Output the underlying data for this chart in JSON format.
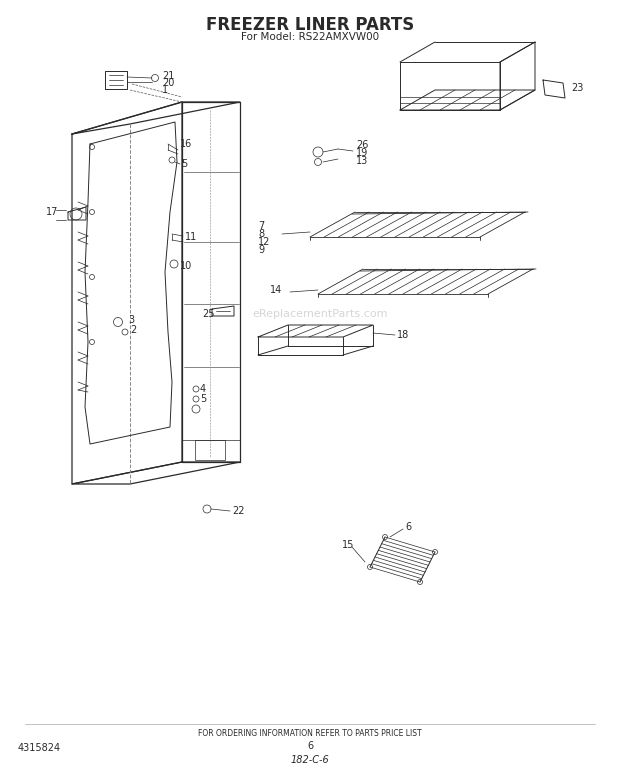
{
  "title": "FREEZER LINER PARTS",
  "subtitle": "For Model: RS22AMXVW00",
  "footer_text": "FOR ORDERING INFORMATION REFER TO PARTS PRICE LIST",
  "footer_num": "6",
  "footer_code": "182-C-6",
  "part_num_bottom_left": "4315824",
  "background_color": "#ffffff",
  "line_color": "#2a2a2a",
  "watermark_color": "#bbbbbb",
  "watermark_text": "eReplacementParts.com",
  "title_fontsize": 12,
  "subtitle_fontsize": 7.5,
  "label_fontsize": 7,
  "footer_fontsize": 5.5
}
